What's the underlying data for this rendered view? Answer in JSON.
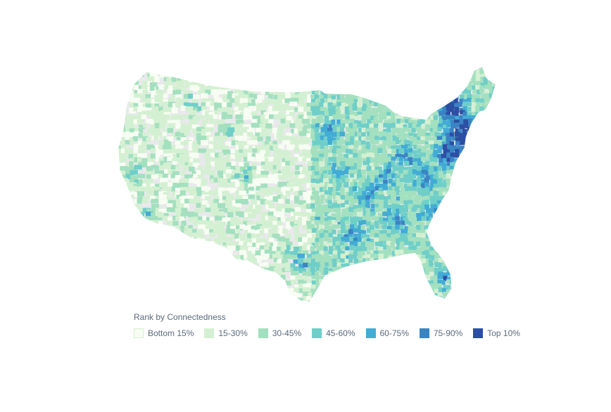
{
  "legend": {
    "title": "Rank by Connectedness",
    "items": [
      {
        "label": "Bottom 15%",
        "color": "#f7fdf2"
      },
      {
        "label": "15-30%",
        "color": "#d4f0d2"
      },
      {
        "label": "30-45%",
        "color": "#a3e0bf"
      },
      {
        "label": "45-60%",
        "color": "#6fcfc8"
      },
      {
        "label": "60-75%",
        "color": "#42acd5"
      },
      {
        "label": "75-90%",
        "color": "#3a84c4"
      },
      {
        "label": "Top 10%",
        "color": "#2b4fa3"
      }
    ]
  },
  "colors": {
    "nodata": "#e9e9ec",
    "background": "#ffffff"
  }
}
